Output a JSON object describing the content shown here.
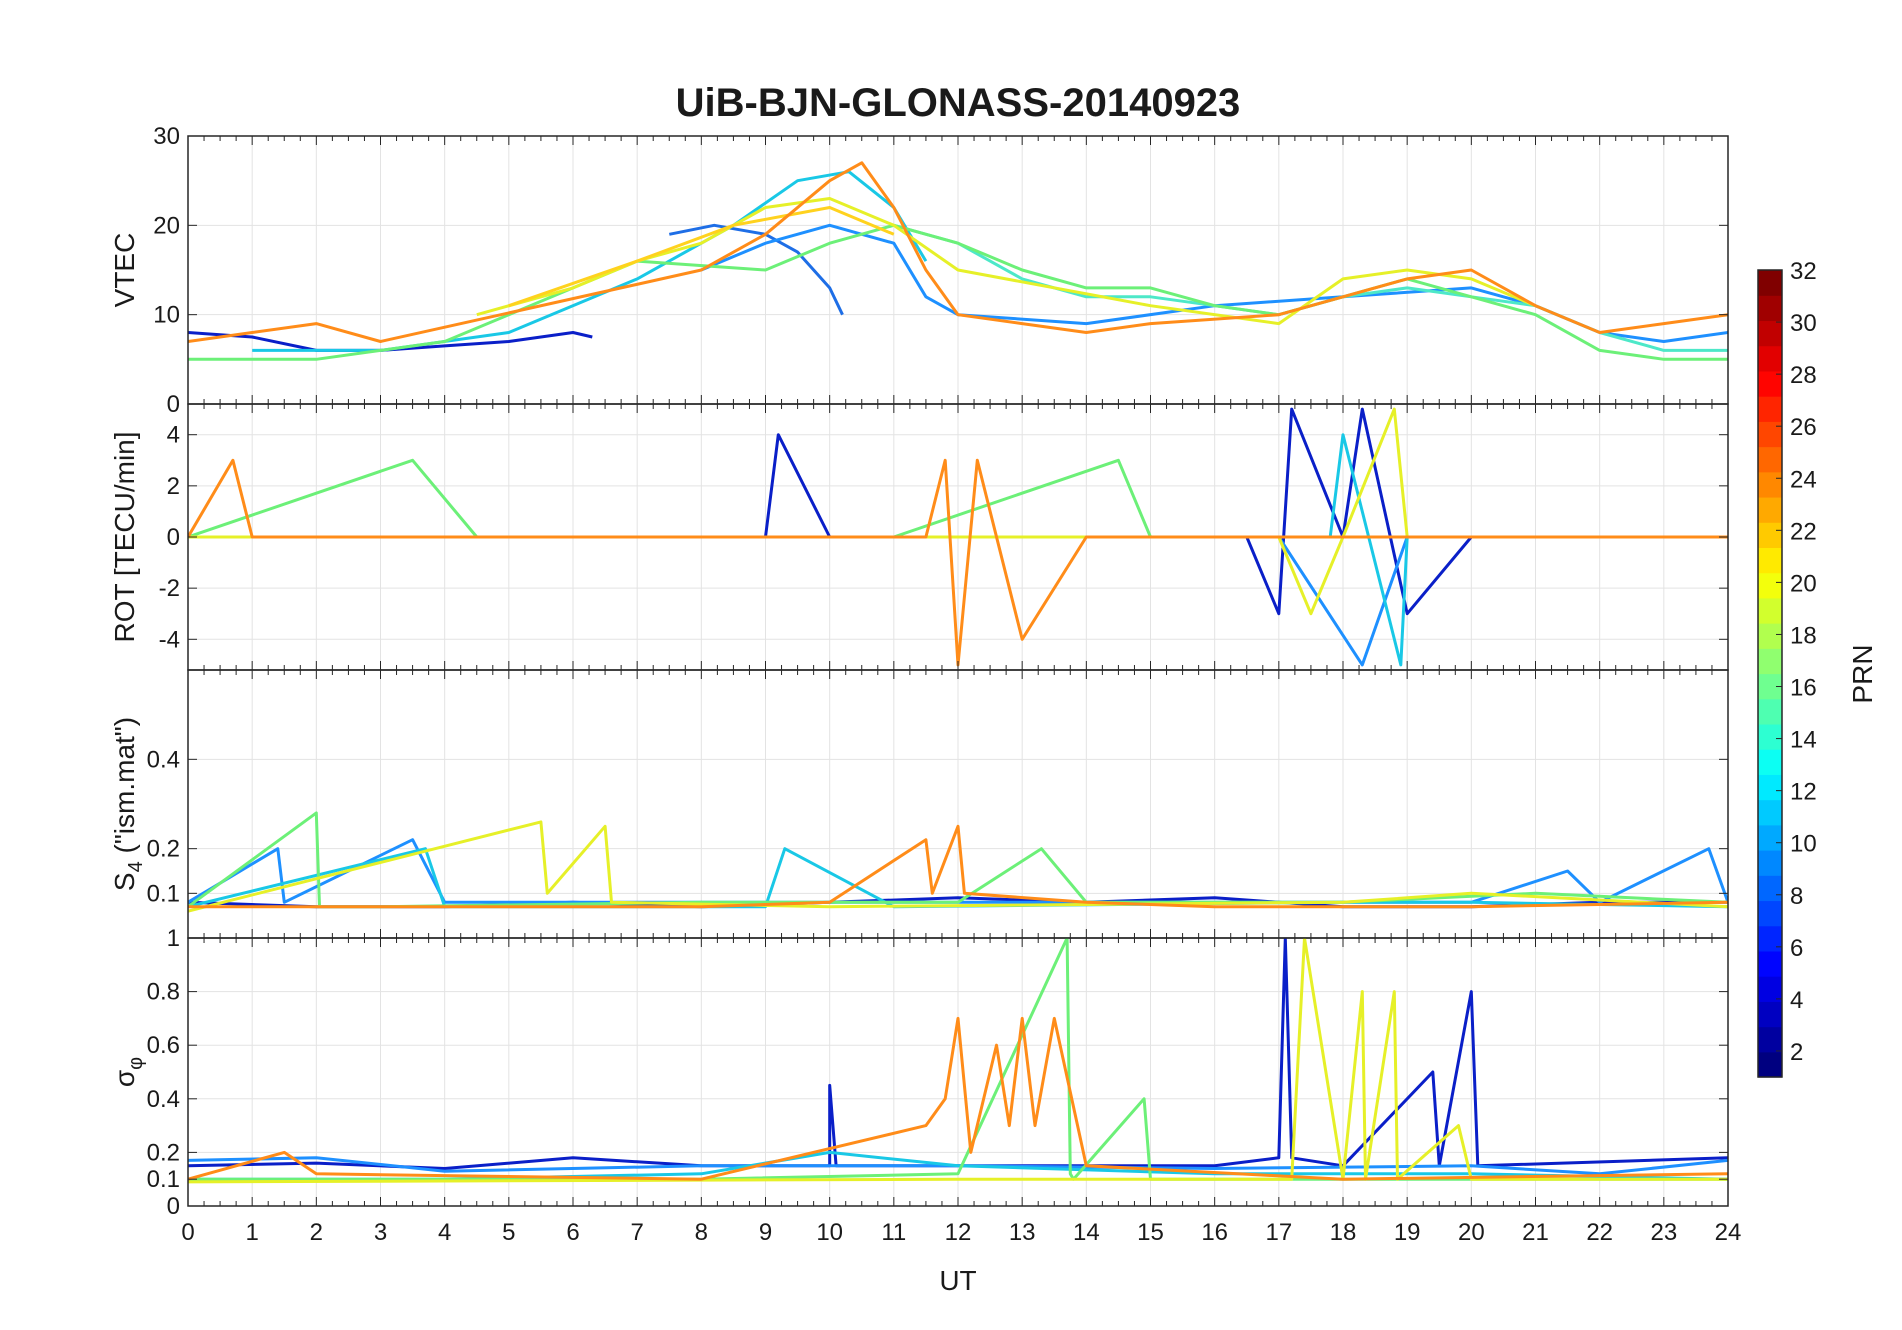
{
  "chart_data": {
    "type": "line",
    "title": "UiB-BJN-GLONASS-20140923",
    "xlabel": "UT",
    "xlim": [
      0,
      24
    ],
    "xticks": [
      "0",
      "1",
      "2",
      "3",
      "4",
      "5",
      "6",
      "7",
      "8",
      "9",
      "10",
      "11",
      "12",
      "13",
      "14",
      "15",
      "16",
      "17",
      "18",
      "19",
      "20",
      "21",
      "22",
      "23",
      "24"
    ],
    "grid": true,
    "colormap": "jet",
    "colorbar": {
      "label": "PRN",
      "range": [
        1,
        32
      ],
      "ticks": [
        "2",
        "4",
        "6",
        "8",
        "10",
        "12",
        "14",
        "16",
        "18",
        "20",
        "22",
        "24",
        "26",
        "28",
        "30",
        "32"
      ]
    },
    "panels": [
      {
        "id": "vtec",
        "ylabel": "VTEC",
        "ylim": [
          0,
          30
        ],
        "yticks": [
          "0",
          "10",
          "20",
          "30"
        ],
        "series": [
          {
            "color": "#0a1fc8",
            "x": [
              0,
              1,
              2,
              3,
              4,
              5,
              6,
              6.3
            ],
            "y": [
              8,
              7.5,
              6,
              6,
              6.5,
              7,
              8,
              7.5
            ]
          },
          {
            "color": "#1e6ee6",
            "x": [
              7.5,
              8.2,
              9,
              9.5,
              10,
              10.2
            ],
            "y": [
              19,
              20,
              19,
              17,
              13,
              10
            ]
          },
          {
            "color": "#1e90ff",
            "x": [
              8,
              9,
              10,
              11,
              11.5,
              12,
              14,
              16,
              18,
              20,
              21,
              22,
              23,
              24
            ],
            "y": [
              15,
              18,
              20,
              18,
              12,
              10,
              9,
              11,
              12,
              13,
              11,
              8,
              7,
              8
            ]
          },
          {
            "color": "#19c8e6",
            "x": [
              1,
              3,
              5,
              7,
              8.5,
              9.5,
              10.3,
              11,
              11.5
            ],
            "y": [
              6,
              6,
              8,
              14,
              20,
              25,
              26,
              22,
              16
            ]
          },
          {
            "color": "#4de8c8",
            "x": [
              11,
              12,
              13,
              14,
              15,
              16,
              17,
              18,
              19,
              20,
              21,
              22,
              23,
              24
            ],
            "y": [
              20,
              18,
              14,
              12,
              12,
              11,
              10,
              12,
              13,
              12,
              11,
              8,
              6,
              6
            ]
          },
          {
            "color": "#6cf078",
            "x": [
              0,
              1,
              2,
              3,
              4,
              5,
              6,
              7,
              9,
              10,
              11,
              12,
              13,
              14,
              15,
              16,
              17,
              18,
              19,
              20,
              21,
              22,
              23,
              24
            ],
            "y": [
              5,
              5,
              5,
              6,
              7,
              10,
              13,
              16,
              15,
              18,
              20,
              18,
              15,
              13,
              13,
              11,
              10,
              12,
              14,
              12,
              10,
              6,
              5,
              5
            ]
          },
          {
            "color": "#e6f028",
            "x": [
              4.5,
              6,
              7,
              8,
              9,
              10,
              11,
              12,
              15,
              17,
              18,
              19,
              20,
              21
            ],
            "y": [
              10,
              13,
              16,
              18,
              22,
              23,
              20,
              15,
              11,
              9,
              14,
              15,
              14,
              11
            ]
          },
          {
            "color": "#ffd21e",
            "x": [
              5,
              7,
              8.5,
              10,
              11
            ],
            "y": [
              11,
              16,
              20,
              22,
              19
            ]
          },
          {
            "color": "#ff8c19",
            "x": [
              0,
              1,
              2,
              3,
              8,
              9,
              10,
              10.5,
              11,
              11.5,
              12,
              13,
              14,
              15,
              17,
              18,
              19,
              20,
              21,
              22,
              23,
              24
            ],
            "y": [
              7,
              8,
              9,
              7,
              15,
              19,
              25,
              27,
              22,
              15,
              10,
              9,
              8,
              9,
              10,
              12,
              14,
              15,
              11,
              8,
              9,
              10
            ]
          }
        ]
      },
      {
        "id": "rot",
        "ylabel": "ROT [TECU/min]",
        "ylim": [
          -5.2,
          5.2
        ],
        "yticks": [
          "-4",
          "-2",
          "0",
          "2",
          "4"
        ],
        "series": [
          {
            "color": "#0a1fc8",
            "x": [
              0,
              4,
              9,
              9.2,
              10,
              12,
              16.5,
              17,
              17.2,
              18,
              18.3,
              19,
              20,
              24
            ],
            "y": [
              0,
              0,
              0,
              4,
              0,
              0,
              0,
              -3,
              5,
              0,
              5,
              -3,
              0,
              0
            ]
          },
          {
            "color": "#1e90ff",
            "x": [
              0,
              4,
              9,
              11,
              13,
              17,
              18.3,
              19,
              24
            ],
            "y": [
              0,
              0,
              0,
              0,
              0,
              0,
              -5,
              0,
              0
            ]
          },
          {
            "color": "#19c8e6",
            "x": [
              0,
              10,
              12,
              17.8,
              18,
              18.9,
              19,
              24
            ],
            "y": [
              0,
              0,
              0,
              0,
              4,
              -5,
              0,
              0
            ]
          },
          {
            "color": "#6cf078",
            "x": [
              0,
              3.5,
              4.5,
              9,
              11,
              14.5,
              15,
              17,
              19,
              20,
              24
            ],
            "y": [
              0,
              3,
              0,
              0,
              0,
              3,
              0,
              0,
              0,
              0,
              0
            ]
          },
          {
            "color": "#e6f028",
            "x": [
              0,
              11,
              15,
              17,
              17.5,
              18,
              18.8,
              19,
              20,
              24
            ],
            "y": [
              0,
              0,
              0,
              0,
              -3,
              0,
              5,
              0,
              0,
              0
            ]
          },
          {
            "color": "#ff8c19",
            "x": [
              0,
              0.7,
              1,
              11.5,
              11.8,
              12,
              12.3,
              13,
              14,
              15,
              20,
              24
            ],
            "y": [
              0,
              3,
              0,
              0,
              3,
              -5,
              3,
              -4,
              0,
              0,
              0,
              0
            ]
          }
        ]
      },
      {
        "id": "s4",
        "ylabel_main": "S",
        "ylabel_sub": "4",
        "ylabel_rest": " (\"ism.mat\")",
        "ylim": [
          0,
          0.6
        ],
        "yticks": [
          "0.1",
          "0.2",
          "0.4"
        ],
        "series": [
          {
            "color": "#0a1fc8",
            "x": [
              0,
              2,
              4,
              6,
              8,
              10,
              12,
              14,
              16,
              17,
              18,
              20,
              22,
              24
            ],
            "y": [
              0.08,
              0.07,
              0.07,
              0.08,
              0.07,
              0.08,
              0.09,
              0.08,
              0.09,
              0.08,
              0.07,
              0.07,
              0.08,
              0.08
            ]
          },
          {
            "color": "#1e90ff",
            "x": [
              0,
              1.4,
              1.5,
              3.5,
              4,
              8,
              12,
              16,
              20,
              21.5,
              22,
              23.7,
              24
            ],
            "y": [
              0.08,
              0.2,
              0.08,
              0.22,
              0.08,
              0.08,
              0.08,
              0.08,
              0.08,
              0.15,
              0.08,
              0.2,
              0.08
            ]
          },
          {
            "color": "#19c8e6",
            "x": [
              0,
              3.7,
              4,
              9,
              9.3,
              11,
              18,
              20,
              24
            ],
            "y": [
              0.07,
              0.2,
              0.07,
              0.07,
              0.2,
              0.07,
              0.08,
              0.08,
              0.07
            ]
          },
          {
            "color": "#6cf078",
            "x": [
              0,
              2,
              2.05,
              3,
              8,
              12,
              13.3,
              14,
              16,
              18,
              21,
              24
            ],
            "y": [
              0.07,
              0.28,
              0.07,
              0.07,
              0.08,
              0.08,
              0.2,
              0.08,
              0.08,
              0.08,
              0.1,
              0.08
            ]
          },
          {
            "color": "#e6f028",
            "x": [
              0,
              5.5,
              5.6,
              6.5,
              6.6,
              10,
              18,
              20,
              24
            ],
            "y": [
              0.06,
              0.26,
              0.1,
              0.25,
              0.08,
              0.07,
              0.08,
              0.1,
              0.07
            ]
          },
          {
            "color": "#ff8c19",
            "x": [
              0,
              4,
              8,
              10,
              11.5,
              11.6,
              12,
              12.1,
              14,
              16,
              20,
              24
            ],
            "y": [
              0.07,
              0.07,
              0.07,
              0.08,
              0.22,
              0.1,
              0.25,
              0.1,
              0.08,
              0.07,
              0.07,
              0.08
            ]
          }
        ]
      },
      {
        "id": "sigma",
        "ylabel_main": "σ",
        "ylabel_sub": "φ",
        "ylim": [
          0,
          1
        ],
        "yticks": [
          "0",
          "0.1",
          "0.2",
          "0.4",
          "0.6",
          "0.8",
          "1"
        ],
        "series": [
          {
            "color": "#0a1fc8",
            "x": [
              0,
              2,
              4,
              6,
              8,
              10,
              10,
              10.1,
              12,
              16,
              17,
              17.1,
              17.2,
              18,
              19.4,
              19.5,
              20,
              20.1,
              24
            ],
            "y": [
              0.15,
              0.16,
              0.14,
              0.18,
              0.15,
              0.15,
              0.45,
              0.15,
              0.15,
              0.15,
              0.18,
              1,
              0.18,
              0.15,
              0.5,
              0.15,
              0.8,
              0.15,
              0.18
            ]
          },
          {
            "color": "#1e90ff",
            "x": [
              0,
              2,
              4,
              8,
              12,
              16,
              20,
              22,
              24
            ],
            "y": [
              0.17,
              0.18,
              0.13,
              0.15,
              0.15,
              0.14,
              0.15,
              0.12,
              0.17
            ]
          },
          {
            "color": "#19c8e6",
            "x": [
              0,
              4,
              8,
              10,
              12,
              16,
              20,
              24
            ],
            "y": [
              0.1,
              0.1,
              0.12,
              0.2,
              0.15,
              0.12,
              0.12,
              0.1
            ]
          },
          {
            "color": "#6cf078",
            "x": [
              0,
              4,
              8,
              12,
              13.7,
              13.75,
              13.8,
              14.9,
              15,
              16,
              20,
              24
            ],
            "y": [
              0.1,
              0.1,
              0.1,
              0.12,
              1,
              0.12,
              0.1,
              0.4,
              0.1,
              0.1,
              0.1,
              0.1
            ]
          },
          {
            "color": "#e6f028",
            "x": [
              0,
              12,
              16,
              17.2,
              17.4,
              18,
              18.3,
              18.35,
              18.8,
              18.85,
              19.8,
              20,
              24
            ],
            "y": [
              0.09,
              0.1,
              0.1,
              0.1,
              1,
              0.1,
              0.8,
              0.1,
              0.8,
              0.1,
              0.3,
              0.1,
              0.1
            ]
          },
          {
            "color": "#ff8c19",
            "x": [
              0,
              1.5,
              2,
              8,
              11.5,
              11.8,
              12,
              12.2,
              12.6,
              12.8,
              13,
              13.2,
              13.5,
              14,
              18,
              24
            ],
            "y": [
              0.1,
              0.2,
              0.12,
              0.1,
              0.3,
              0.4,
              0.7,
              0.2,
              0.6,
              0.3,
              0.7,
              0.3,
              0.7,
              0.15,
              0.1,
              0.12
            ]
          }
        ]
      }
    ]
  }
}
